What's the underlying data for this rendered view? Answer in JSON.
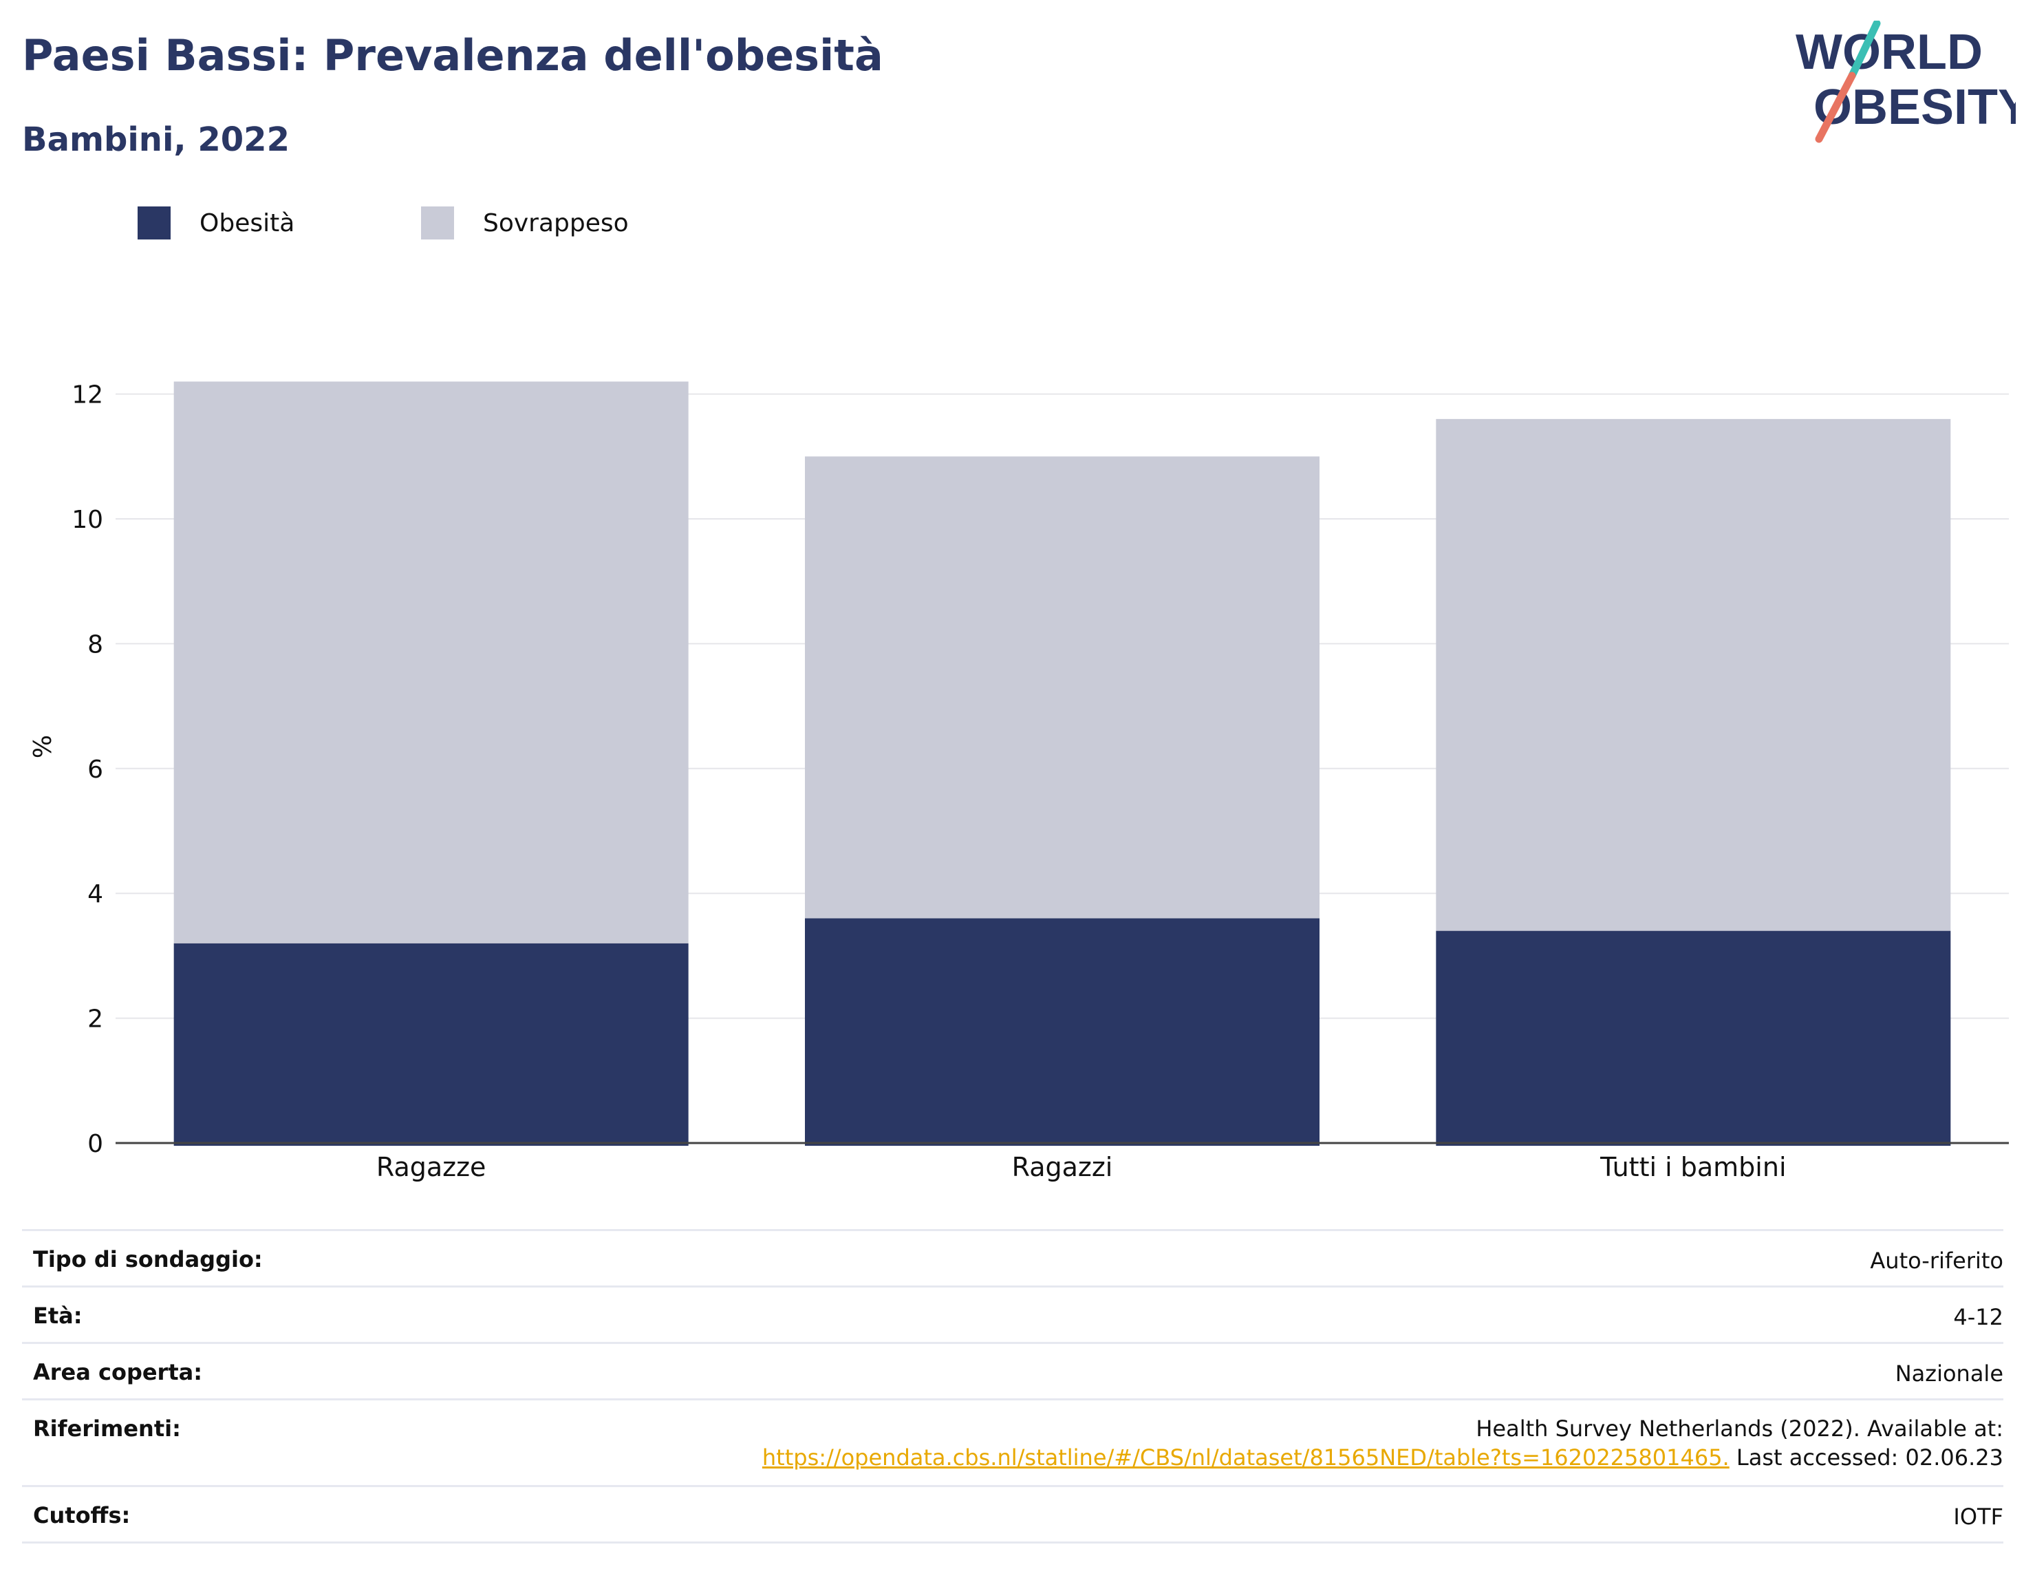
{
  "header": {
    "title": "Paesi Bassi: Prevalenza dell'obesità",
    "subtitle": "Bambini, 2022"
  },
  "logo": {
    "line1": "WORLD",
    "line2": "OBESITY",
    "colors": {
      "text": "#2a3764",
      "slash_top": "#3bbfb4",
      "slash_bottom": "#e87461"
    }
  },
  "legend": [
    {
      "label": "Obesità",
      "color": "#2a3764"
    },
    {
      "label": "Sovrappeso",
      "color": "#c9cbd7"
    }
  ],
  "chart_data": {
    "type": "bar",
    "stacked": true,
    "categories": [
      "Ragazze",
      "Ragazzi",
      "Tutti i bambini"
    ],
    "series": [
      {
        "name": "Obesità",
        "color": "#2a3764",
        "values": [
          3.2,
          3.6,
          3.4
        ]
      },
      {
        "name": "Sovrappeso",
        "color": "#c9cbd7",
        "values": [
          9.0,
          7.4,
          8.2
        ]
      }
    ],
    "ylabel": "%",
    "ylim": [
      0,
      12.4
    ],
    "yticks": [
      0,
      2,
      4,
      6,
      8,
      10,
      12
    ],
    "grid": true,
    "legend_position": "top-left"
  },
  "info": {
    "survey_type": {
      "label": "Tipo di sondaggio:",
      "value": "Auto-riferito"
    },
    "age": {
      "label": "Età:",
      "value": "4-12"
    },
    "area": {
      "label": "Area coperta:",
      "value": "Nazionale"
    },
    "references": {
      "label": "Riferimenti:",
      "line1": "Health Survey Netherlands (2022). Available at:",
      "link": "https://opendata.cbs.nl/statline/#/CBS/nl/dataset/81565NED/table?ts=1620225801465.",
      "suffix": " Last accessed: 02.06.23"
    },
    "cutoffs": {
      "label": "Cutoffs:",
      "value": "IOTF"
    }
  }
}
